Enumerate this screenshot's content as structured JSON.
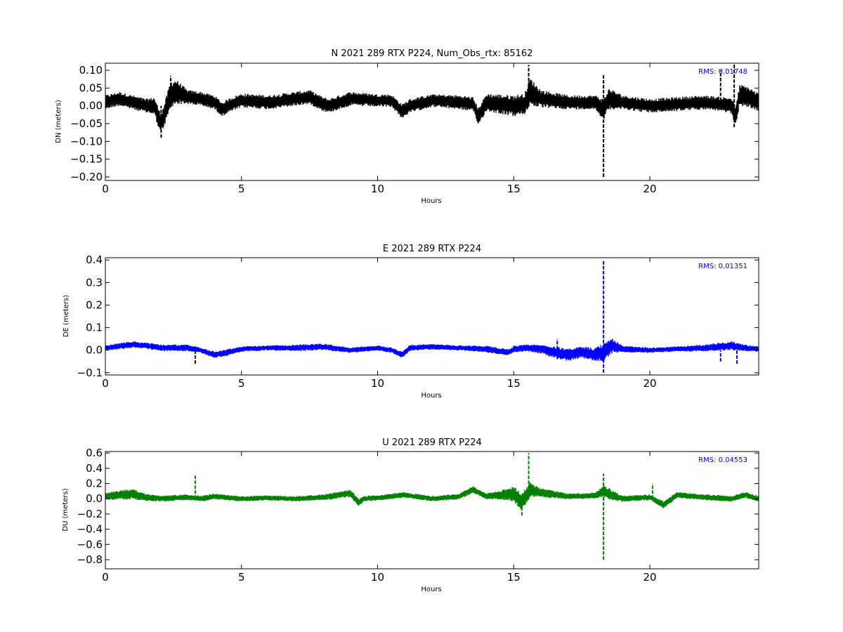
{
  "chart_data": [
    {
      "type": "line",
      "title": "N 2021 289 RTX  P224, Num_Obs_rtx: 85162",
      "xlabel": "Hours",
      "ylabel": "DN (meters)",
      "xlim": [
        0,
        24
      ],
      "ylim": [
        -0.21,
        0.12
      ],
      "xticks": [
        0,
        5,
        10,
        15,
        20
      ],
      "xtick_labels": [
        "0",
        "5",
        "10",
        "15",
        "20"
      ],
      "yticks": [
        0.1,
        0.05,
        0.0,
        -0.05,
        -0.1,
        -0.15,
        -0.2
      ],
      "ytick_labels": [
        "0.10",
        "0.05",
        "0.00",
        "−0.05",
        "−0.10",
        "−0.15",
        "−0.20"
      ],
      "annotation": "RMS:  0.01748",
      "annotation_color": "#0000ff",
      "series": [
        {
          "color": "#000000",
          "x": [
            0,
            0.5,
            1,
            1.5,
            1.8,
            2.0,
            2.1,
            2.4,
            2.6,
            3.0,
            3.5,
            4.0,
            4.3,
            4.5,
            5,
            6,
            7,
            7.5,
            8,
            8.2,
            9,
            10,
            10.5,
            10.9,
            11.2,
            12,
            13,
            13.5,
            13.7,
            14,
            15,
            15.4,
            15.6,
            16,
            17,
            18,
            18.3,
            18.5,
            19,
            20,
            21,
            22,
            22.6,
            23.0,
            23.15,
            23.3,
            23.6,
            24
          ],
          "y": [
            0.01,
            0.02,
            0.01,
            0.0,
            0.0,
            -0.045,
            -0.04,
            0.03,
            0.04,
            0.025,
            0.02,
            0.01,
            -0.01,
            0.0,
            0.015,
            0.01,
            0.02,
            0.025,
            0.005,
            0.0,
            0.02,
            0.015,
            0.015,
            -0.015,
            0.0,
            0.015,
            0.01,
            0.005,
            -0.03,
            0.01,
            0.0,
            0.005,
            0.04,
            0.02,
            0.01,
            0.01,
            -0.01,
            0.02,
            0.01,
            0.0,
            0.005,
            0.01,
            0.005,
            0.0,
            -0.03,
            0.03,
            0.025,
            0.01
          ],
          "spread": [
            0.02,
            0.02,
            0.02,
            0.02,
            0.025,
            0.03,
            0.03,
            0.04,
            0.035,
            0.02,
            0.02,
            0.02,
            0.02,
            0.02,
            0.02,
            0.02,
            0.02,
            0.02,
            0.02,
            0.02,
            0.02,
            0.018,
            0.018,
            0.02,
            0.02,
            0.018,
            0.02,
            0.02,
            0.025,
            0.025,
            0.03,
            0.03,
            0.04,
            0.025,
            0.02,
            0.02,
            0.03,
            0.03,
            0.02,
            0.02,
            0.02,
            0.02,
            0.02,
            0.025,
            0.025,
            0.03,
            0.03,
            0.025
          ],
          "spikes": [
            [
              2.05,
              -0.09,
              0.0
            ],
            [
              2.4,
              0.0,
              0.085
            ],
            [
              15.55,
              0.0,
              0.115
            ],
            [
              18.3,
              -0.2,
              0.09
            ],
            [
              22.6,
              0.0,
              0.1
            ],
            [
              23.1,
              -0.06,
              0.12
            ]
          ]
        }
      ]
    },
    {
      "type": "line",
      "title": "E 2021 289 RTX  P224",
      "xlabel": "Hours",
      "ylabel": "DE (meters)",
      "xlim": [
        0,
        24
      ],
      "ylim": [
        -0.11,
        0.41
      ],
      "xticks": [
        0,
        5,
        10,
        15,
        20
      ],
      "xtick_labels": [
        "0",
        "5",
        "10",
        "15",
        "20"
      ],
      "yticks": [
        0.4,
        0.3,
        0.2,
        0.1,
        0.0,
        -0.1
      ],
      "ytick_labels": [
        "0.4",
        "0.3",
        "0.2",
        "0.1",
        "0.0",
        "−0.1"
      ],
      "annotation": "RMS:  0.01351",
      "annotation_color": "#0000ff",
      "series": [
        {
          "color": "#0000ff",
          "x": [
            0,
            1,
            1.5,
            2,
            3,
            3.5,
            4,
            4.5,
            5,
            6,
            7,
            8,
            9,
            10,
            10.5,
            10.9,
            11.2,
            12,
            13,
            14,
            14.8,
            15,
            15.5,
            16,
            16.5,
            17,
            17.5,
            18,
            18.3,
            18.6,
            19,
            20,
            21,
            22,
            23,
            23.5,
            24
          ],
          "y": [
            0.01,
            0.025,
            0.02,
            0.01,
            0.01,
            0.0,
            -0.02,
            -0.01,
            0.005,
            0.01,
            0.01,
            0.015,
            0.0,
            0.01,
            0.0,
            -0.02,
            0.01,
            0.015,
            0.01,
            0.005,
            -0.01,
            0.005,
            0.01,
            0.005,
            -0.01,
            -0.02,
            -0.01,
            -0.02,
            -0.01,
            0.02,
            0.005,
            0.0,
            0.005,
            0.01,
            0.02,
            0.01,
            0.005
          ],
          "spread": [
            0.012,
            0.015,
            0.015,
            0.015,
            0.015,
            0.012,
            0.015,
            0.015,
            0.012,
            0.012,
            0.015,
            0.015,
            0.012,
            0.012,
            0.012,
            0.015,
            0.015,
            0.012,
            0.012,
            0.015,
            0.015,
            0.015,
            0.015,
            0.02,
            0.025,
            0.03,
            0.025,
            0.03,
            0.04,
            0.035,
            0.015,
            0.012,
            0.012,
            0.015,
            0.02,
            0.015,
            0.012
          ],
          "spikes": [
            [
              3.3,
              -0.06,
              0.0
            ],
            [
              16.6,
              -0.04,
              0.05
            ],
            [
              18.3,
              -0.1,
              0.4
            ],
            [
              22.6,
              -0.05,
              0.0
            ],
            [
              23.2,
              -0.06,
              0.03
            ]
          ]
        }
      ]
    },
    {
      "type": "line",
      "title": "U 2021 289 RTX  P224",
      "xlabel": "Hours",
      "ylabel": "DU (meters)",
      "xlim": [
        0,
        24
      ],
      "ylim": [
        -0.92,
        0.62
      ],
      "xticks": [
        0,
        5,
        10,
        15,
        20
      ],
      "xtick_labels": [
        "0",
        "5",
        "10",
        "15",
        "20"
      ],
      "yticks": [
        0.6,
        0.4,
        0.2,
        0.0,
        -0.2,
        -0.4,
        -0.6,
        -0.8
      ],
      "ytick_labels": [
        "0.6",
        "0.4",
        "0.2",
        "0.0",
        "−0.2",
        "−0.4",
        "−0.6",
        "−0.8"
      ],
      "annotation": "RMS:  0.04553",
      "annotation_color": "#0000ff",
      "series": [
        {
          "color": "#008000",
          "x": [
            0,
            0.5,
            1,
            1.5,
            2,
            3,
            3.5,
            4,
            5,
            6,
            7,
            8,
            9,
            9.3,
            9.5,
            10,
            11,
            12,
            13,
            13.5,
            14,
            14.5,
            15,
            15.3,
            15.6,
            16,
            17,
            18,
            18.3,
            18.6,
            19,
            20,
            20.5,
            21,
            22,
            23,
            23.5,
            24
          ],
          "y": [
            0.03,
            0.05,
            0.06,
            0.02,
            0.0,
            0.02,
            0.0,
            0.03,
            0.0,
            0.01,
            0.0,
            0.02,
            0.07,
            -0.05,
            0.0,
            0.01,
            0.05,
            0.0,
            0.03,
            0.12,
            0.03,
            0.05,
            0.06,
            -0.05,
            0.12,
            0.08,
            0.03,
            0.04,
            0.1,
            0.05,
            0.0,
            0.02,
            -0.08,
            0.05,
            0.02,
            0.0,
            0.05,
            0.0
          ],
          "spread": [
            0.05,
            0.06,
            0.07,
            0.05,
            0.04,
            0.04,
            0.04,
            0.04,
            0.035,
            0.035,
            0.035,
            0.04,
            0.05,
            0.05,
            0.04,
            0.035,
            0.04,
            0.035,
            0.04,
            0.05,
            0.04,
            0.06,
            0.1,
            0.12,
            0.1,
            0.06,
            0.04,
            0.04,
            0.08,
            0.07,
            0.04,
            0.04,
            0.05,
            0.04,
            0.04,
            0.04,
            0.04,
            0.04
          ],
          "spikes": [
            [
              3.3,
              0.0,
              0.32
            ],
            [
              15.3,
              -0.22,
              0.0
            ],
            [
              15.55,
              0.0,
              0.6
            ],
            [
              18.3,
              -0.8,
              0.33
            ],
            [
              20.1,
              0.0,
              0.2
            ]
          ]
        }
      ]
    }
  ]
}
